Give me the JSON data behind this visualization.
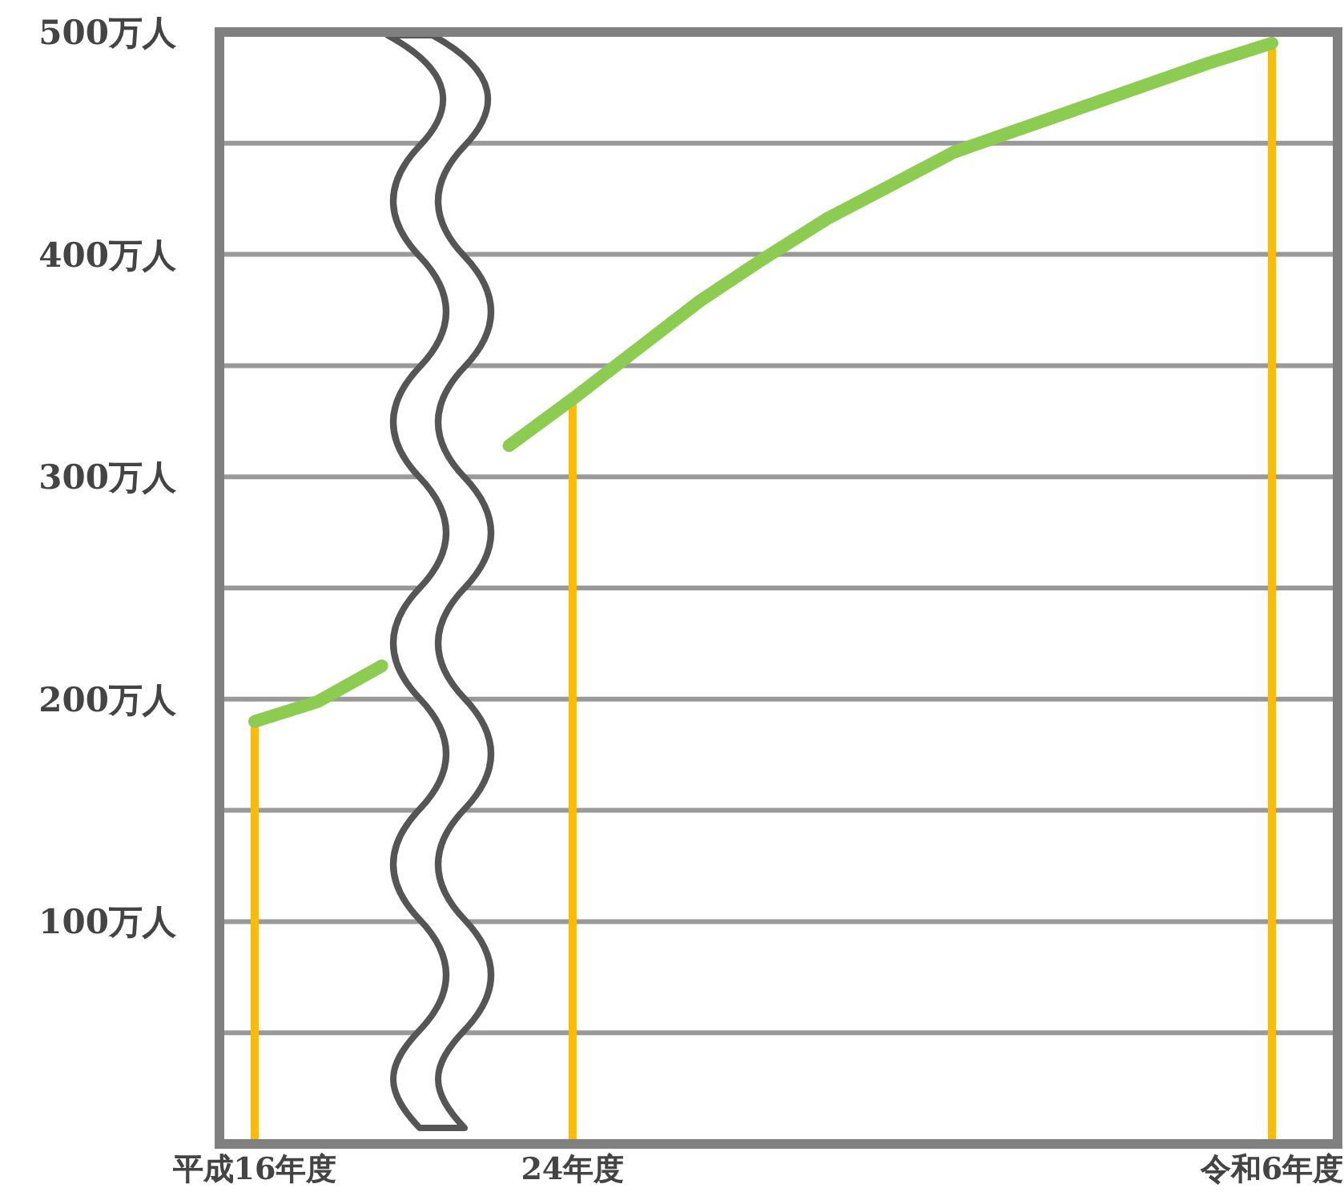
{
  "chart_data": {
    "type": "line",
    "categories": [
      "平成16年度",
      null,
      null,
      null,
      null,
      "24年度",
      null,
      null,
      null,
      null,
      null,
      null,
      null,
      null,
      null,
      null,
      "令和6年度"
    ],
    "series": [
      {
        "color": "#8ccc50",
        "values": [
          190,
          199,
          215,
          null,
          314,
          335,
          357,
          379,
          398,
          416,
          431,
          446,
          456,
          466,
          476,
          486,
          495
        ]
      },
      {
        "type": "bar",
        "color": "#ffbb00",
        "values": [
          190,
          null,
          null,
          null,
          null,
          335,
          null,
          null,
          null,
          null,
          null,
          null,
          null,
          null,
          null,
          null,
          495
        ]
      }
    ],
    "ylim": [
      0,
      500
    ],
    "yticks": [
      {
        "value": 0,
        "label": null
      },
      {
        "value": 50,
        "label": null
      },
      {
        "value": 100,
        "label": "100万人"
      },
      {
        "value": 150,
        "label": null
      },
      {
        "value": 200,
        "label": "200万人"
      },
      {
        "value": 250,
        "label": null
      },
      {
        "value": 300,
        "label": "300万人"
      },
      {
        "value": 350,
        "label": null
      },
      {
        "value": 400,
        "label": "400万人"
      },
      {
        "value": 450,
        "label": null
      },
      {
        "value": 500,
        "label": "500万人"
      }
    ],
    "grid": "y"
  }
}
